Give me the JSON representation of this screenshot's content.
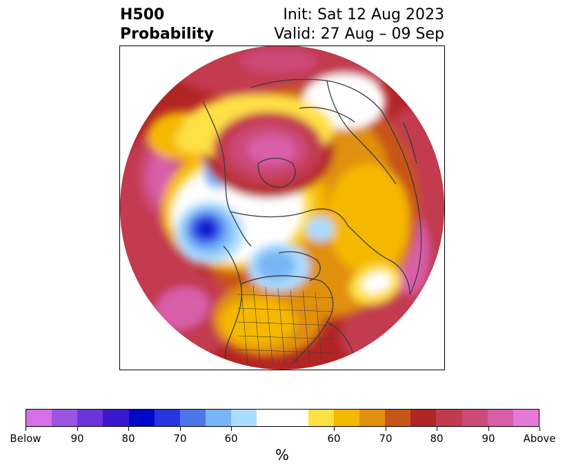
{
  "title": {
    "left_line1": "H500",
    "left_line2": "Probability",
    "right_line1": "Init: Sat 12 Aug 2023",
    "right_line2": "Valid: 27 Aug – 09 Sep"
  },
  "map": {
    "projection": "north-polar-stereographic",
    "colors": {
      "below_90_plus": "#d670e8",
      "below_90": "#9b55e0",
      "below_85": "#6a35d8",
      "below_80": "#3a18d0",
      "below_75": "#0008c8",
      "below_70": "#2535e0",
      "below_65": "#4c75ea",
      "below_60": "#78b5f5",
      "below_55": "#aadcff",
      "neutral": "#ffffff",
      "above_55": "#ffe045",
      "above_60": "#f5b800",
      "above_65": "#e0900f",
      "above_70": "#c85518",
      "above_75": "#b22525",
      "above_80": "#c23a50",
      "above_85": "#cc4a78",
      "above_90": "#d85ea8",
      "above_90_plus": "#e678d8",
      "coastline": "#3a3a3a"
    }
  },
  "colorbar": {
    "colors": [
      "#d670e8",
      "#9b55e0",
      "#6a35d8",
      "#3a18d0",
      "#0008c8",
      "#2535e0",
      "#4c75ea",
      "#78b5f5",
      "#aadcff",
      "#ffffff",
      "#ffe045",
      "#f5b800",
      "#e0900f",
      "#c85518",
      "#b22525",
      "#c23a50",
      "#cc4a78",
      "#d85ea8",
      "#e678d8"
    ],
    "widths": [
      1,
      1,
      1,
      1,
      1,
      1,
      1,
      1,
      1,
      2,
      1,
      1,
      1,
      1,
      1,
      1,
      1,
      1,
      1
    ],
    "ticks": [
      "Below",
      "90",
      "80",
      "70",
      "60",
      "60",
      "70",
      "80",
      "90",
      "Above"
    ],
    "unit": "%"
  }
}
